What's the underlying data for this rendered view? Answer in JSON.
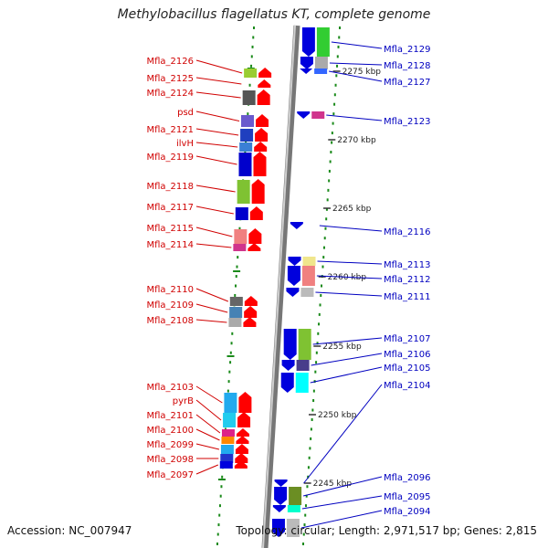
{
  "title": "Methylobacillus flagellatus KT, complete genome",
  "accession": "Accession: NC_007947",
  "topology": "Topology: circular; Length: 2,971,517 bp; Genes: 2,815",
  "colors": {
    "left_label": "#d00000",
    "right_label": "#0000c0",
    "forward": "#ff0000",
    "reverse": "#0000dd",
    "grid_dot": "#1a8a1a"
  },
  "kbp_labels": [
    "2275 kbp",
    "2270 kbp",
    "2265 kbp",
    "2260 kbp",
    "2255 kbp",
    "2250 kbp",
    "2245 kbp"
  ],
  "left_genes": [
    "Mfla_2126",
    "Mfla_2125",
    "Mfla_2124",
    "psd",
    "Mfla_2121",
    "ilvH",
    "Mfla_2119",
    "Mfla_2118",
    "Mfla_2117",
    "Mfla_2115",
    "Mfla_2114",
    "Mfla_2110",
    "Mfla_2109",
    "Mfla_2108",
    "Mfla_2103",
    "pyrB",
    "Mfla_2101",
    "Mfla_2100",
    "Mfla_2099",
    "Mfla_2098",
    "Mfla_2097"
  ],
  "right_genes": [
    "Mfla_2129",
    "Mfla_2128",
    "Mfla_2127",
    "Mfla_2123",
    "Mfla_2116",
    "Mfla_2113",
    "Mfla_2112",
    "Mfla_2111",
    "Mfla_2107",
    "Mfla_2106",
    "Mfla_2105",
    "Mfla_2104",
    "Mfla_2096",
    "Mfla_2095",
    "Mfla_2094"
  ]
}
